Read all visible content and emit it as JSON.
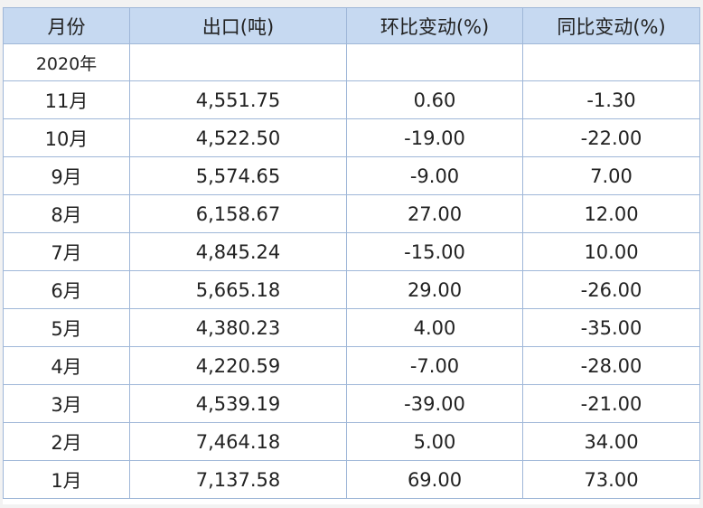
{
  "headers": [
    "月份",
    "出口(吨)",
    "环比变动(%)",
    "同比变动(%)"
  ],
  "year_label": "2020年",
  "rows": [
    {
      "month": "11月",
      "export": "4,551.75",
      "mom": "0.60",
      "yoy": "-1.30"
    },
    {
      "month": "10月",
      "export": "4,522.50",
      "mom": "-19.00",
      "yoy": "-22.00"
    },
    {
      "month": "9月",
      "export": "5,574.65",
      "mom": "-9.00",
      "yoy": "7.00"
    },
    {
      "month": "8月",
      "export": "6,158.67",
      "mom": "27.00",
      "yoy": "12.00"
    },
    {
      "month": "7月",
      "export": "4,845.24",
      "mom": "-15.00",
      "yoy": "10.00"
    },
    {
      "month": "6月",
      "export": "5,665.18",
      "mom": "29.00",
      "yoy": "-26.00"
    },
    {
      "month": "5月",
      "export": "4,380.23",
      "mom": "4.00",
      "yoy": "-35.00"
    },
    {
      "month": "4月",
      "export": "4,220.59",
      "mom": "-7.00",
      "yoy": "-28.00"
    },
    {
      "month": "3月",
      "export": "4,539.19",
      "mom": "-39.00",
      "yoy": "-21.00"
    },
    {
      "month": "2月",
      "export": "7,464.18",
      "mom": "5.00",
      "yoy": "34.00"
    },
    {
      "month": "1月",
      "export": "7,137.58",
      "mom": "69.00",
      "yoy": "73.00"
    }
  ]
}
